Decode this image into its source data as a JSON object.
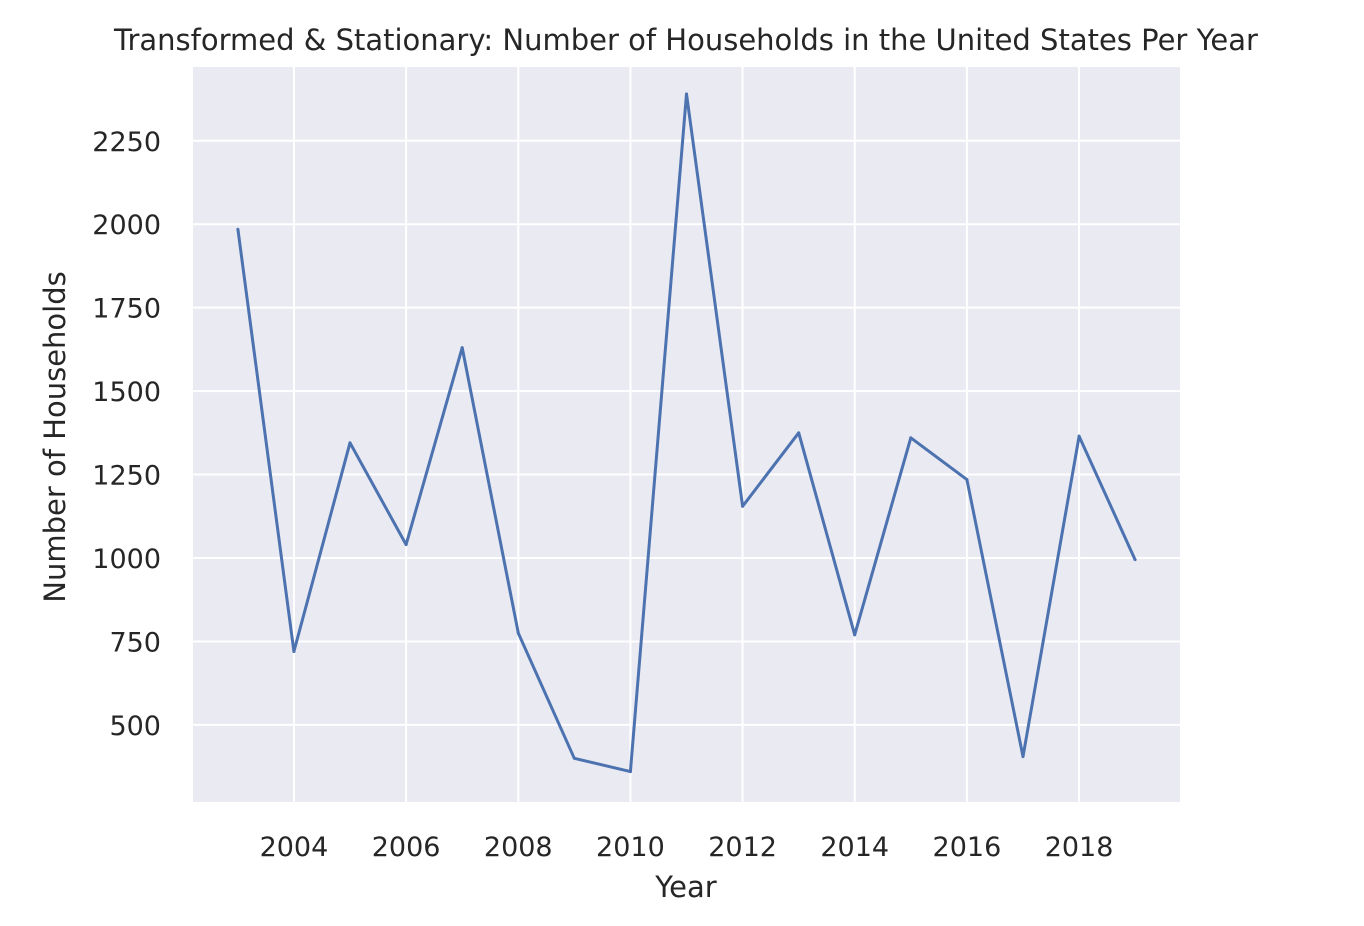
{
  "chart_data": {
    "type": "line",
    "title": "Transformed & Stationary: Number of Households in the United States Per Year",
    "xlabel": "Year",
    "ylabel": "Number of Households",
    "x": [
      2003,
      2004,
      2005,
      2006,
      2007,
      2008,
      2009,
      2010,
      2011,
      2012,
      2013,
      2014,
      2015,
      2016,
      2017,
      2018,
      2019
    ],
    "series": [
      {
        "values": [
          1985,
          720,
          1345,
          1040,
          1630,
          775,
          400,
          360,
          2390,
          1155,
          1375,
          770,
          1360,
          1235,
          405,
          1365,
          995
        ]
      }
    ],
    "xticks": [
      "2004",
      "2006",
      "2008",
      "2010",
      "2012",
      "2014",
      "2016",
      "2018"
    ],
    "yticks": [
      "500",
      "750",
      "1000",
      "1250",
      "1500",
      "1750",
      "2000",
      "2250"
    ],
    "xlim": [
      2002.2,
      2019.8
    ],
    "ylim": [
      269,
      2471
    ],
    "grid": true,
    "colors": {
      "background": "#eaeaf2",
      "grid": "#ffffff",
      "line": "#4c72b0",
      "text": "#262626"
    }
  }
}
